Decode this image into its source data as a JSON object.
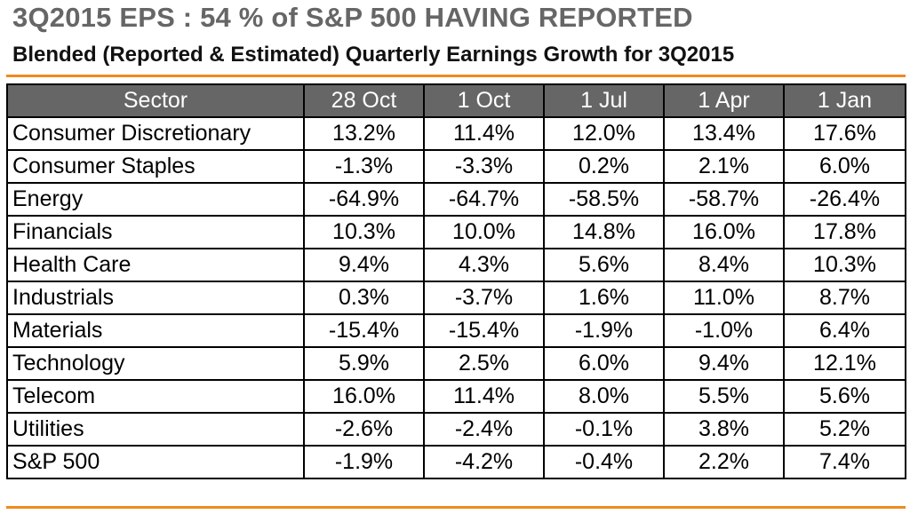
{
  "title": "3Q2015 EPS : 54 % of S&P 500 HAVING REPORTED",
  "subtitle": "Blended (Reported & Estimated) Quarterly Earnings Growth for 3Q2015",
  "colors": {
    "accent_rule": "#f08a1c",
    "header_bg": "#666666"
  },
  "table": {
    "headers": [
      "Sector",
      "28 Oct",
      "1 Oct",
      "1 Jul",
      "1 Apr",
      "1 Jan"
    ],
    "rows": [
      [
        "Consumer Discretionary",
        "13.2%",
        "11.4%",
        "12.0%",
        "13.4%",
        "17.6%"
      ],
      [
        "Consumer Staples",
        "-1.3%",
        "-3.3%",
        "0.2%",
        "2.1%",
        "6.0%"
      ],
      [
        "Energy",
        "-64.9%",
        "-64.7%",
        "-58.5%",
        "-58.7%",
        "-26.4%"
      ],
      [
        "Financials",
        "10.3%",
        "10.0%",
        "14.8%",
        "16.0%",
        "17.8%"
      ],
      [
        "Health Care",
        "9.4%",
        "4.3%",
        "5.6%",
        "8.4%",
        "10.3%"
      ],
      [
        "Industrials",
        "0.3%",
        "-3.7%",
        "1.6%",
        "11.0%",
        "8.7%"
      ],
      [
        "Materials",
        "-15.4%",
        "-15.4%",
        "-1.9%",
        "-1.0%",
        "6.4%"
      ],
      [
        "Technology",
        "5.9%",
        "2.5%",
        "6.0%",
        "9.4%",
        "12.1%"
      ],
      [
        "Telecom",
        "16.0%",
        "11.4%",
        "8.0%",
        "5.5%",
        "5.6%"
      ],
      [
        "Utilities",
        "-2.6%",
        "-2.4%",
        "-0.1%",
        "3.8%",
        "5.2%"
      ],
      [
        "S&P 500",
        "-1.9%",
        "-4.2%",
        "-0.4%",
        "2.2%",
        "7.4%"
      ]
    ]
  }
}
